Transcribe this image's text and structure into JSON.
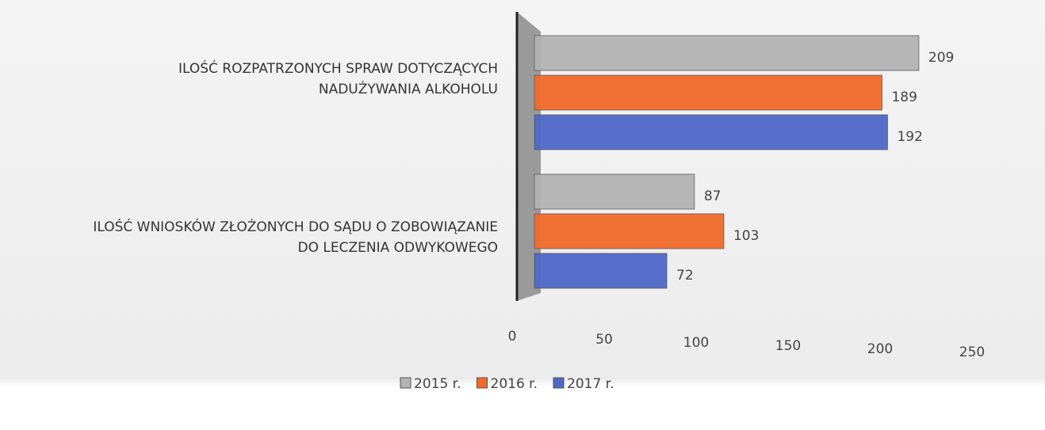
{
  "chart_data": {
    "type": "bar",
    "orientation": "horizontal",
    "categories": [
      "ILOŚĆ ROZPATRZONYCH SPRAW DOTYCZĄCYCH\nNADUŻYWANIA ALKOHOLU",
      "ILOŚĆ WNIOSKÓW ZŁOŻONYCH DO SĄDU O ZOBOWIĄZANIE\nDO LECZENIA ODWYKOWEGO"
    ],
    "series": [
      {
        "name": "2015 r.",
        "color": "#b3b3b3",
        "values": [
          209,
          87
        ]
      },
      {
        "name": "2016 r.",
        "color": "#f26a2a",
        "values": [
          189,
          103
        ]
      },
      {
        "name": "2017 r.",
        "color": "#4f68c9",
        "values": [
          192,
          72
        ]
      }
    ],
    "xlim": [
      0,
      250
    ],
    "xticks": [
      0,
      50,
      100,
      150,
      200,
      250
    ],
    "legend": "bottom"
  }
}
